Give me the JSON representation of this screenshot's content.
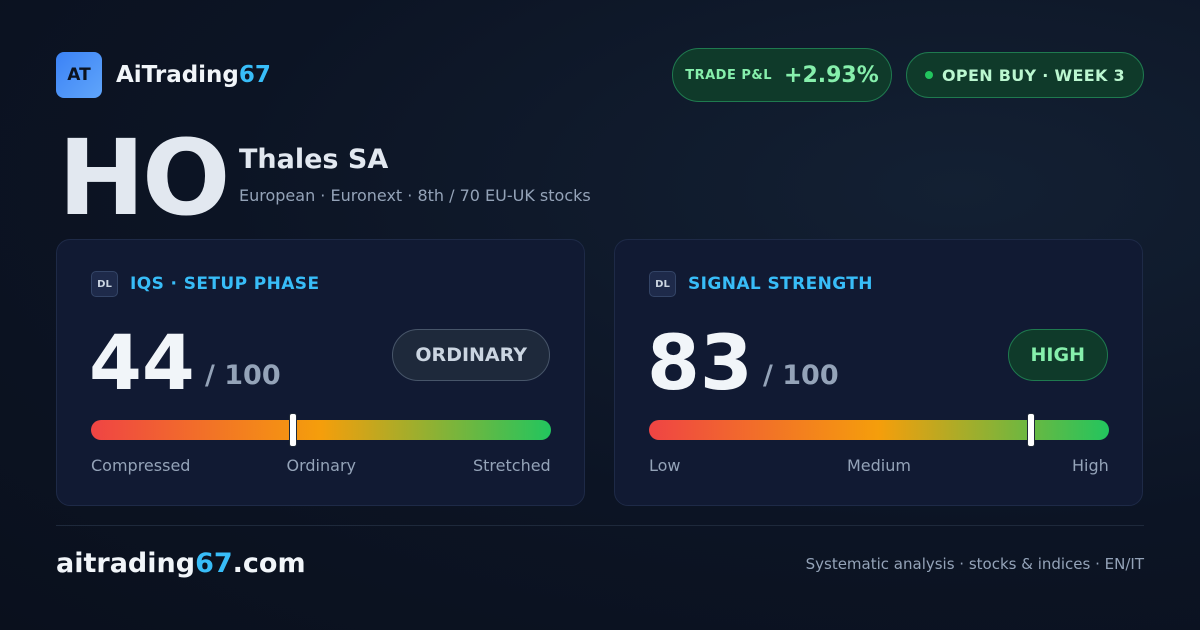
{
  "header": {
    "logo": "AT",
    "brand": [
      "AiTrading",
      "67"
    ],
    "pnl": {
      "label": "TRADE P&L",
      "value": "+2.93%"
    },
    "status": "OPEN BUY · WEEK 3"
  },
  "stock": {
    "ticker": "HO",
    "name": "Thales SA",
    "subtitle": "European · Euronext · 8th / 70 EU-UK stocks"
  },
  "cards": [
    {
      "badge": "DL",
      "title": "IQS · SETUP PHASE",
      "score": 44,
      "scale": [
        0,
        100
      ],
      "out_of": "/ 100",
      "verdict": "ORDINARY",
      "tone": "neutral",
      "labels": [
        "Compressed",
        "Ordinary",
        "Stretched"
      ]
    },
    {
      "badge": "DL",
      "title": "SIGNAL STRENGTH",
      "score": 83,
      "scale": [
        0,
        100
      ],
      "out_of": "/ 100",
      "verdict": "HIGH",
      "tone": "good",
      "labels": [
        "Low",
        "Medium",
        "High"
      ]
    }
  ],
  "footer": {
    "site": [
      "aitrading",
      "67",
      ".com"
    ],
    "tagline": "Systematic analysis · stocks & indices · EN/IT"
  }
}
